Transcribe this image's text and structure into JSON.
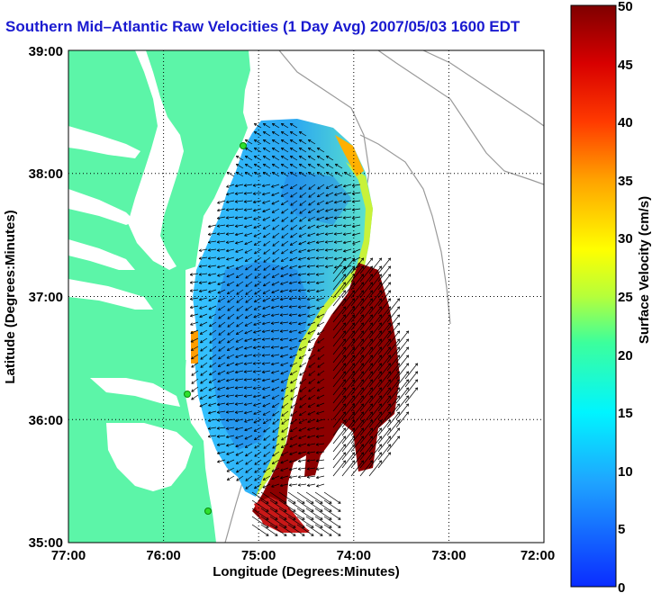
{
  "title": "Southern Mid–Atlantic Raw Velocities (1 Day Avg) 2007/05/03 1600 EDT",
  "map": {
    "xlabel": "Longitude (Degrees:Minutes)",
    "ylabel": "Latitude (Degrees:Minutes)",
    "x_ticks": [
      "77:00",
      "76:00",
      "75:00",
      "74:00",
      "73:00",
      "72:00"
    ],
    "y_ticks": [
      "39:00",
      "38:00",
      "37:00",
      "36:00",
      "35:00"
    ],
    "land_color": "#5cf5a8",
    "grid": true
  },
  "colorbar": {
    "label": "Surface Velocity (cm/s)",
    "ticks": [
      "50",
      "45",
      "40",
      "35",
      "30",
      "25",
      "20",
      "15",
      "10",
      "5",
      "0"
    ],
    "range": [
      0,
      50
    ],
    "colormap": "jet"
  }
}
